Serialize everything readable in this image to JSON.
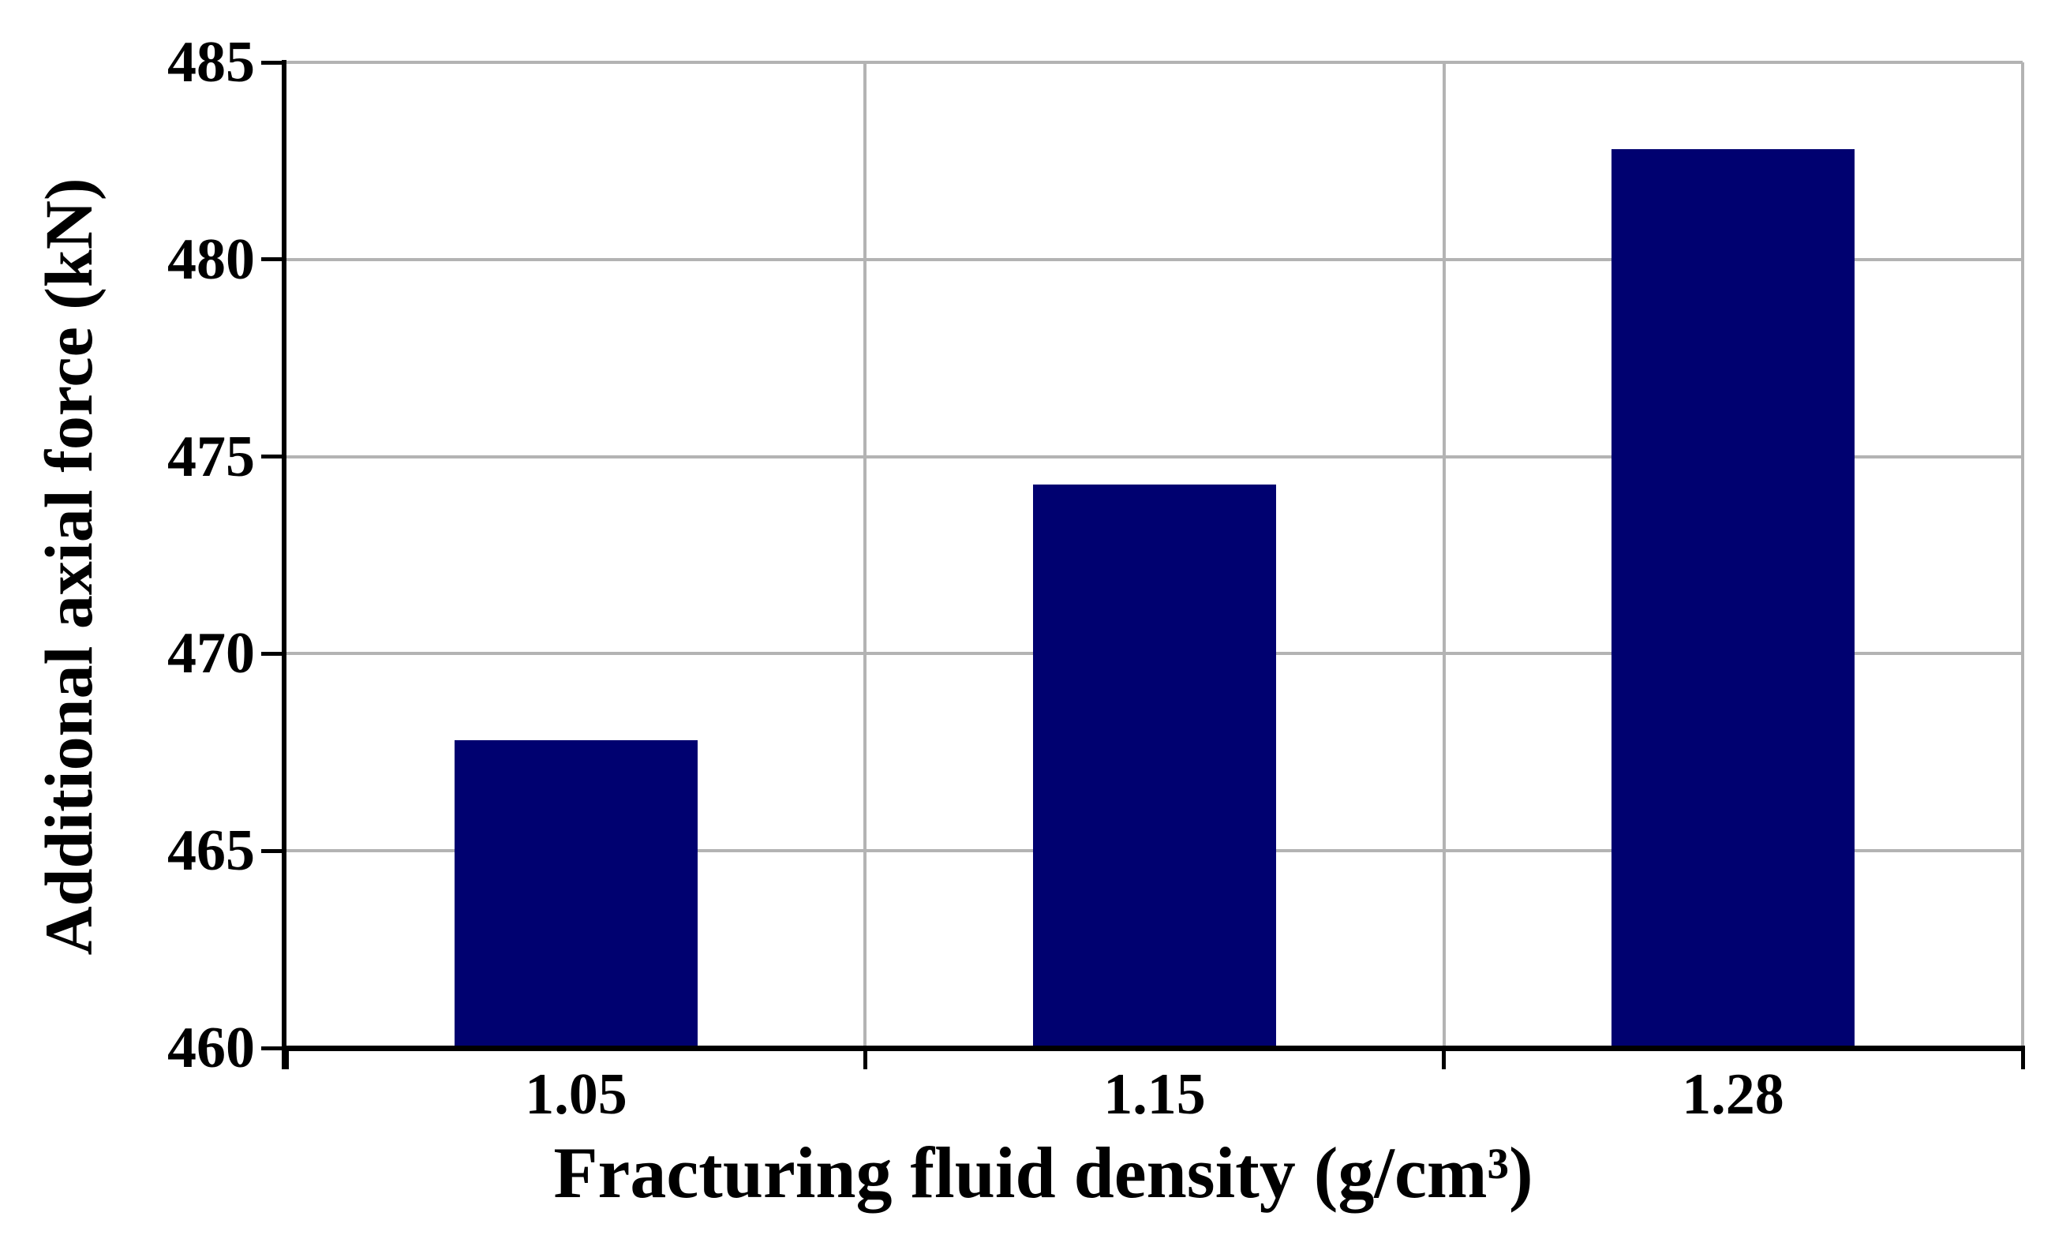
{
  "figure": {
    "background_color": "#ffffff",
    "text_color": "#000000"
  },
  "chart_data": {
    "type": "bar",
    "title": "",
    "xlabel": "Fracturing fluid density (g/cm³)",
    "ylabel": "Additional axial force (kN)",
    "categories": [
      "1.05",
      "1.15",
      "1.28"
    ],
    "values": [
      467.8,
      474.3,
      482.8
    ],
    "series": [
      {
        "name": "Additional axial force (kN)",
        "values": [
          467.8,
          474.3,
          482.8
        ]
      }
    ],
    "ylim": [
      460,
      485
    ],
    "y_tick_step": 5,
    "y_ticks": [
      485,
      480,
      475,
      470,
      465,
      460
    ],
    "y_tick_labels": [
      "485",
      "480",
      "475",
      "470",
      "465",
      "460"
    ],
    "legend": "none",
    "grid": "on",
    "gridline_color": "#b3b3b3",
    "axis_color": "#000000",
    "bar_color": "#000170",
    "bar_width_fraction": 0.42
  }
}
